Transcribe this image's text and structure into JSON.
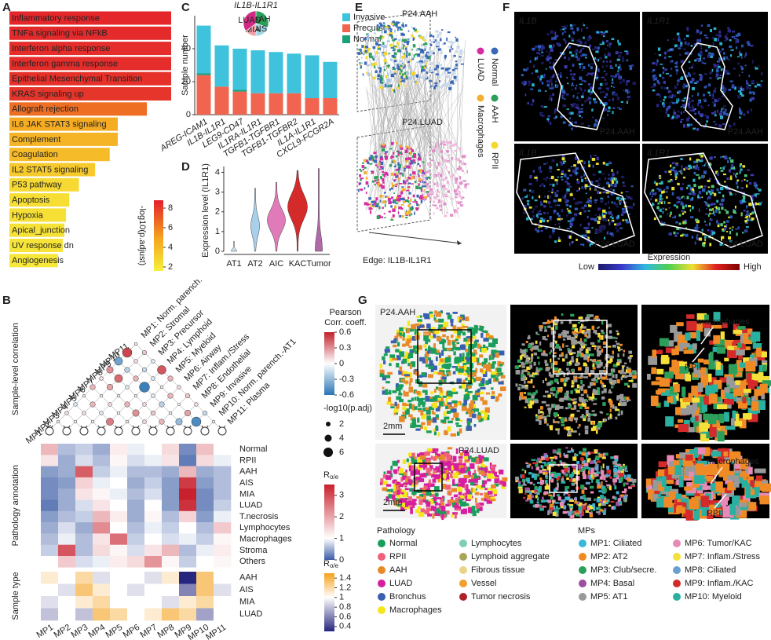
{
  "panel_labels": [
    "A",
    "B",
    "C",
    "D",
    "E",
    "F",
    "G"
  ],
  "enrichment": {
    "type": "bar",
    "terms": [
      "Inflammatory response",
      "TNFa signaling via NFkB",
      "Interferon alpha response",
      "Interferon gamma response",
      "Epithelial Mesenchymal Transition",
      "KRAS signaling up",
      "Allograft rejection",
      "IL6 JAK STAT3 signaling",
      "Complement",
      "Coagulation",
      "IL2 STAT5 signaling",
      "P53 pathway",
      "Apoptosis",
      "Hypoxia",
      "Apical_junction",
      "UV response dn",
      "Angiogenesis"
    ],
    "values": [
      100,
      100,
      100,
      100,
      100,
      100,
      85,
      67,
      67,
      62,
      53,
      43,
      37,
      35,
      34,
      33,
      30
    ],
    "neglog10_padj": [
      8.6,
      8.5,
      8.4,
      8.4,
      8.3,
      8.2,
      6.5,
      4.6,
      4.2,
      3.9,
      3.3,
      2.6,
      2.4,
      2.3,
      2.2,
      2.1,
      2.0
    ],
    "colorbar": {
      "title": "-log10(p.adjust)",
      "ticks": [
        2,
        4,
        6,
        8
      ],
      "cmap_stops": [
        [
          1.6,
          "#f6f03c"
        ],
        [
          5,
          "#f5a21e"
        ],
        [
          8.8,
          "#e3202c"
        ]
      ]
    }
  },
  "cci": {
    "type": "bar",
    "stacked": true,
    "categories": [
      "AREG-ICAM1",
      "IL1B-IL1R1",
      "LEG9-CD47",
      "IL1RA-IL1R1",
      "TGFB1-TGFBR1",
      "TGFB1-TGFBR2",
      "IL1A-IL1R1",
      "CXCL9-FCGR2A"
    ],
    "series": [
      {
        "name": "Invasive",
        "color": "#3fc3dc",
        "values": [
          29,
          25,
          25,
          26,
          25,
          24,
          26,
          22
        ]
      },
      {
        "name": "Precursor",
        "color": "#f06450",
        "values": [
          24,
          17,
          14,
          13,
          13,
          13,
          10,
          10
        ]
      },
      {
        "name": "Normal",
        "color": "#1aa07a",
        "values": [
          1,
          0,
          1,
          0,
          0,
          0,
          0,
          0
        ]
      }
    ],
    "ylabel": "Sample number",
    "ylim": [
      0,
      60
    ],
    "yticks": [
      0,
      20,
      40
    ],
    "pie": {
      "title": "IL1B-IL1R1",
      "labels": [
        "AAH",
        "AIS",
        "MIA",
        "LUAD"
      ],
      "values": [
        30,
        20,
        15,
        35
      ],
      "colors": [
        "#2ca05a",
        "#9fd7e8",
        "#f4a0a8",
        "#d02a84"
      ]
    }
  },
  "violin": {
    "type": "violin",
    "categories": [
      "AT1",
      "AT2",
      "AIC",
      "KAC",
      "Tumor"
    ],
    "values": [
      0.5,
      3.2,
      3.5,
      4.1,
      4.2
    ],
    "colors": [
      "#c8e0f0",
      "#a8d0ec",
      "#e07ab8",
      "#d42a2a",
      "#b06aa8"
    ],
    "ylabel": "Expression level (IL1R1)",
    "ylim": [
      0,
      4.3
    ],
    "yticks": [
      0,
      1,
      2,
      3,
      4
    ]
  },
  "network": {
    "titles": [
      "P24.AAH",
      "P24.LUAD"
    ],
    "edge_label": "Edge: IL1B-IL1R1",
    "legend": [
      {
        "name": "Normal",
        "color": "#3a68b8"
      },
      {
        "name": "AAH",
        "color": "#2ca05a"
      },
      {
        "name": "RPII",
        "color": "#f5d82a"
      },
      {
        "name": "LUAD",
        "color": "#d62ca0"
      },
      {
        "name": "Macrophages",
        "color": "#f0b030"
      }
    ]
  },
  "spatial_expr": {
    "genes": [
      "IL1B",
      "IL1R1"
    ],
    "samples": [
      "P24.AAH",
      "P24.LUAD"
    ],
    "colorbar": {
      "title": "Expression",
      "low": "Low",
      "high": "High"
    }
  },
  "correlation": {
    "axis_title": "Sample-level correlation",
    "labels": [
      "MP1",
      "MP2",
      "MP3",
      "MP4",
      "MP5",
      "MP6",
      "MP7",
      "MP8",
      "MP9",
      "MP10",
      "MP11"
    ],
    "names": [
      "MP1: Norm. parench.",
      "MP2: Stromal",
      "MP3: Precursor",
      "MP4: Lymphoid",
      "MP5: Myeloid",
      "MP6: Airway",
      "MP7: Inflam./Stress",
      "MP8: Endothelial",
      "MP9: Invasive",
      "MP10: Norm. parench.-AT1",
      "MP11: Plasma"
    ],
    "corr": [
      [
        0.05
      ],
      [
        0.1,
        -0.05
      ],
      [
        -0.1,
        0.1,
        -0.05
      ],
      [
        0.05,
        0.2,
        -0.1,
        0.35
      ],
      [
        0.2,
        0.05,
        0.1,
        -0.05,
        0.05
      ],
      [
        0.1,
        0.25,
        -0.05,
        0.2,
        0.3,
        0.1
      ],
      [
        0.3,
        0.4,
        -0.1,
        0.05,
        0.1,
        0.15,
        0.2
      ],
      [
        -0.4,
        -0.2,
        0.2,
        -0.55,
        -0.1,
        -0.2,
        0.05,
        -0.3
      ],
      [
        0.5,
        0.1,
        -0.15,
        -0.1,
        0.05,
        0.2,
        0,
        0.25,
        -0.5
      ],
      [
        0.05,
        0.15,
        -0.1,
        0.45,
        0.2,
        0.1,
        0.15,
        0.1,
        -0.15,
        0.05
      ]
    ],
    "neglog10p": [
      [
        0.6
      ],
      [
        1.2,
        0.6
      ],
      [
        1.2,
        1.2,
        0.6
      ],
      [
        0.6,
        2.4,
        1.2,
        4.2
      ],
      [
        2.4,
        0.6,
        1.2,
        0.6,
        0.6
      ],
      [
        1.2,
        3,
        0.6,
        2.4,
        3.6,
        1.2
      ],
      [
        3.6,
        4.8,
        1.2,
        0.6,
        1.2,
        1.8,
        2.4
      ],
      [
        4.8,
        2.4,
        2.4,
        6.6,
        1.2,
        2.4,
        0.6,
        3.6
      ],
      [
        6,
        1.2,
        1.8,
        1.2,
        0.6,
        2.4,
        0.3,
        3,
        6
      ],
      [
        0.6,
        1.8,
        1.2,
        5.4,
        2.4,
        1.2,
        1.8,
        1.2,
        1.8,
        0.6
      ]
    ],
    "colorbar": {
      "title": [
        "Pearson",
        "Corr. coeff."
      ],
      "ticks": [
        0.6,
        0.3,
        0,
        -0.3,
        -0.6
      ],
      "cmap_stops": [
        [
          -0.6,
          "#2a74b4"
        ],
        [
          0,
          "#ffffff"
        ],
        [
          0.6,
          "#c0202a"
        ]
      ]
    },
    "size_legend": {
      "title": "-log10(p.adj)",
      "values": [
        2,
        4,
        6
      ]
    }
  },
  "pathology_heatmap": {
    "axis_title": "Pathology annotation",
    "rows": [
      "Normal",
      "RPII",
      "AAH",
      "AIS",
      "MIA",
      "LUAD",
      "T.necrosis",
      "Lymphocytes",
      "Macrophages",
      "Stroma",
      "Others"
    ],
    "values": [
      [
        1.8,
        0.6,
        0.7,
        0.5,
        1.2,
        0.9,
        1,
        1.4,
        0.3,
        1.7,
        1
      ],
      [
        1.3,
        0.5,
        0.8,
        0.6,
        1.1,
        0.8,
        0.9,
        1.3,
        0.2,
        1.4,
        0.9
      ],
      [
        0.4,
        0.5,
        2.8,
        0.7,
        0.9,
        0.6,
        0.6,
        0.5,
        1.8,
        0.5,
        0.6
      ],
      [
        0.3,
        0.4,
        1.5,
        0.9,
        1,
        0.5,
        0.7,
        0.4,
        3.2,
        0.4,
        0.6
      ],
      [
        0.3,
        0.5,
        1.3,
        1.1,
        0.9,
        0.6,
        0.8,
        0.4,
        3.5,
        0.3,
        0.6
      ],
      [
        0.2,
        0.5,
        0.8,
        1.3,
        1,
        0.5,
        1,
        0.4,
        3.3,
        0.3,
        0.7
      ],
      [
        0.4,
        0.6,
        0.7,
        1.8,
        1.2,
        0.5,
        1.1,
        0.6,
        1.5,
        0.4,
        0.9
      ],
      [
        0.5,
        0.8,
        0.5,
        2.3,
        1,
        0.6,
        0.9,
        0.7,
        1,
        0.6,
        1.6
      ],
      [
        0.6,
        0.9,
        0.6,
        1.3,
        2.6,
        0.7,
        1,
        0.8,
        0.9,
        0.7,
        1.1
      ],
      [
        0.7,
        2.9,
        0.6,
        1.4,
        1.1,
        0.8,
        1.3,
        1.8,
        0.6,
        0.9,
        1.2
      ],
      [
        1,
        1.6,
        0.8,
        0.9,
        1.2,
        1.4,
        2.2,
        1.1,
        0.7,
        1,
        1.1
      ]
    ],
    "colorbar": {
      "title": {
        "main": "R",
        "sub": "o/e"
      },
      "ticks": [
        3,
        2,
        1,
        0
      ],
      "cmap_stops": [
        [
          0,
          "#3b5ba5"
        ],
        [
          1,
          "#ffffff"
        ],
        [
          3.5,
          "#c8202c"
        ]
      ]
    }
  },
  "sample_heatmap": {
    "axis_title": "Sample type",
    "rows": [
      "AAH",
      "AIS",
      "MIA",
      "LUAD"
    ],
    "columns": [
      "MP1",
      "MP2",
      "MP3",
      "MP4",
      "MP5",
      "MP6",
      "MP7",
      "MP8",
      "MP9",
      "MP10",
      "MP11"
    ],
    "values": [
      [
        1.1,
        1,
        1.2,
        0.9,
        1,
        1,
        0.9,
        1.1,
        0.3,
        1.3,
        1
      ],
      [
        1,
        0.9,
        1.3,
        1.1,
        1,
        0.9,
        1,
        1,
        0.6,
        1.3,
        0.9
      ],
      [
        0.9,
        1,
        1.1,
        1.2,
        1,
        1,
        1,
        0.9,
        1.1,
        1.2,
        1
      ],
      [
        0.8,
        1,
        0.8,
        1.3,
        1.2,
        1,
        1.1,
        1.3,
        1.2,
        0.7,
        1
      ]
    ],
    "colorbar": {
      "title": {
        "main": "R",
        "sub": "o/e"
      },
      "ticks": [
        1.4,
        1.2,
        1,
        0.8,
        0.6,
        0.4
      ],
      "cmap_stops": [
        [
          0.3,
          "#26267e"
        ],
        [
          1,
          "#ffffff"
        ],
        [
          1.5,
          "#f5a01a"
        ]
      ]
    }
  },
  "spatial_mp": {
    "samples": [
      "P24.AAH",
      "P24.LUAD"
    ],
    "scale": "2mm",
    "annotations": [
      "macrophages",
      "RPII"
    ],
    "pathology": {
      "title": "Pathology",
      "items": [
        {
          "name": "Normal",
          "color": "#1a9e5c"
        },
        {
          "name": "RPII",
          "color": "#f0607a"
        },
        {
          "name": "AAH",
          "color": "#e88a2a"
        },
        {
          "name": "LUAD",
          "color": "#d61e9e"
        },
        {
          "name": "Bronchus",
          "color": "#3a5fb0"
        },
        {
          "name": "Macrophages",
          "color": "#f5e61c"
        },
        {
          "name": "Lymphocytes",
          "color": "#7fcfb0"
        },
        {
          "name": "Lymphoid aggregate",
          "color": "#a9a65a"
        },
        {
          "name": "Fibrous tissue",
          "color": "#e8d48a"
        },
        {
          "name": "Vessel",
          "color": "#f0a030"
        },
        {
          "name": "Tumor necrosis",
          "color": "#b0222a"
        }
      ]
    },
    "mps": {
      "title": "MPs",
      "items": [
        {
          "name": "MP1: Ciliated",
          "color": "#3ab7d8"
        },
        {
          "name": "MP2: AT2",
          "color": "#f08a24"
        },
        {
          "name": "MP3: Club/secre.",
          "color": "#2ca05a"
        },
        {
          "name": "MP4: Basal",
          "color": "#9b4fa0"
        },
        {
          "name": "MP5: AT1",
          "color": "#999999"
        },
        {
          "name": "MP6: Tumor/KAC",
          "color": "#e88ab8"
        },
        {
          "name": "MP7: Inflam./Stress",
          "color": "#f5e03a"
        },
        {
          "name": "MP8: Ciliated",
          "color": "#6a9fd0"
        },
        {
          "name": "MP9: Inflam./KAC",
          "color": "#d42a2a"
        },
        {
          "name": "MP10: Myeloid",
          "color": "#2ab0a0"
        }
      ]
    }
  }
}
